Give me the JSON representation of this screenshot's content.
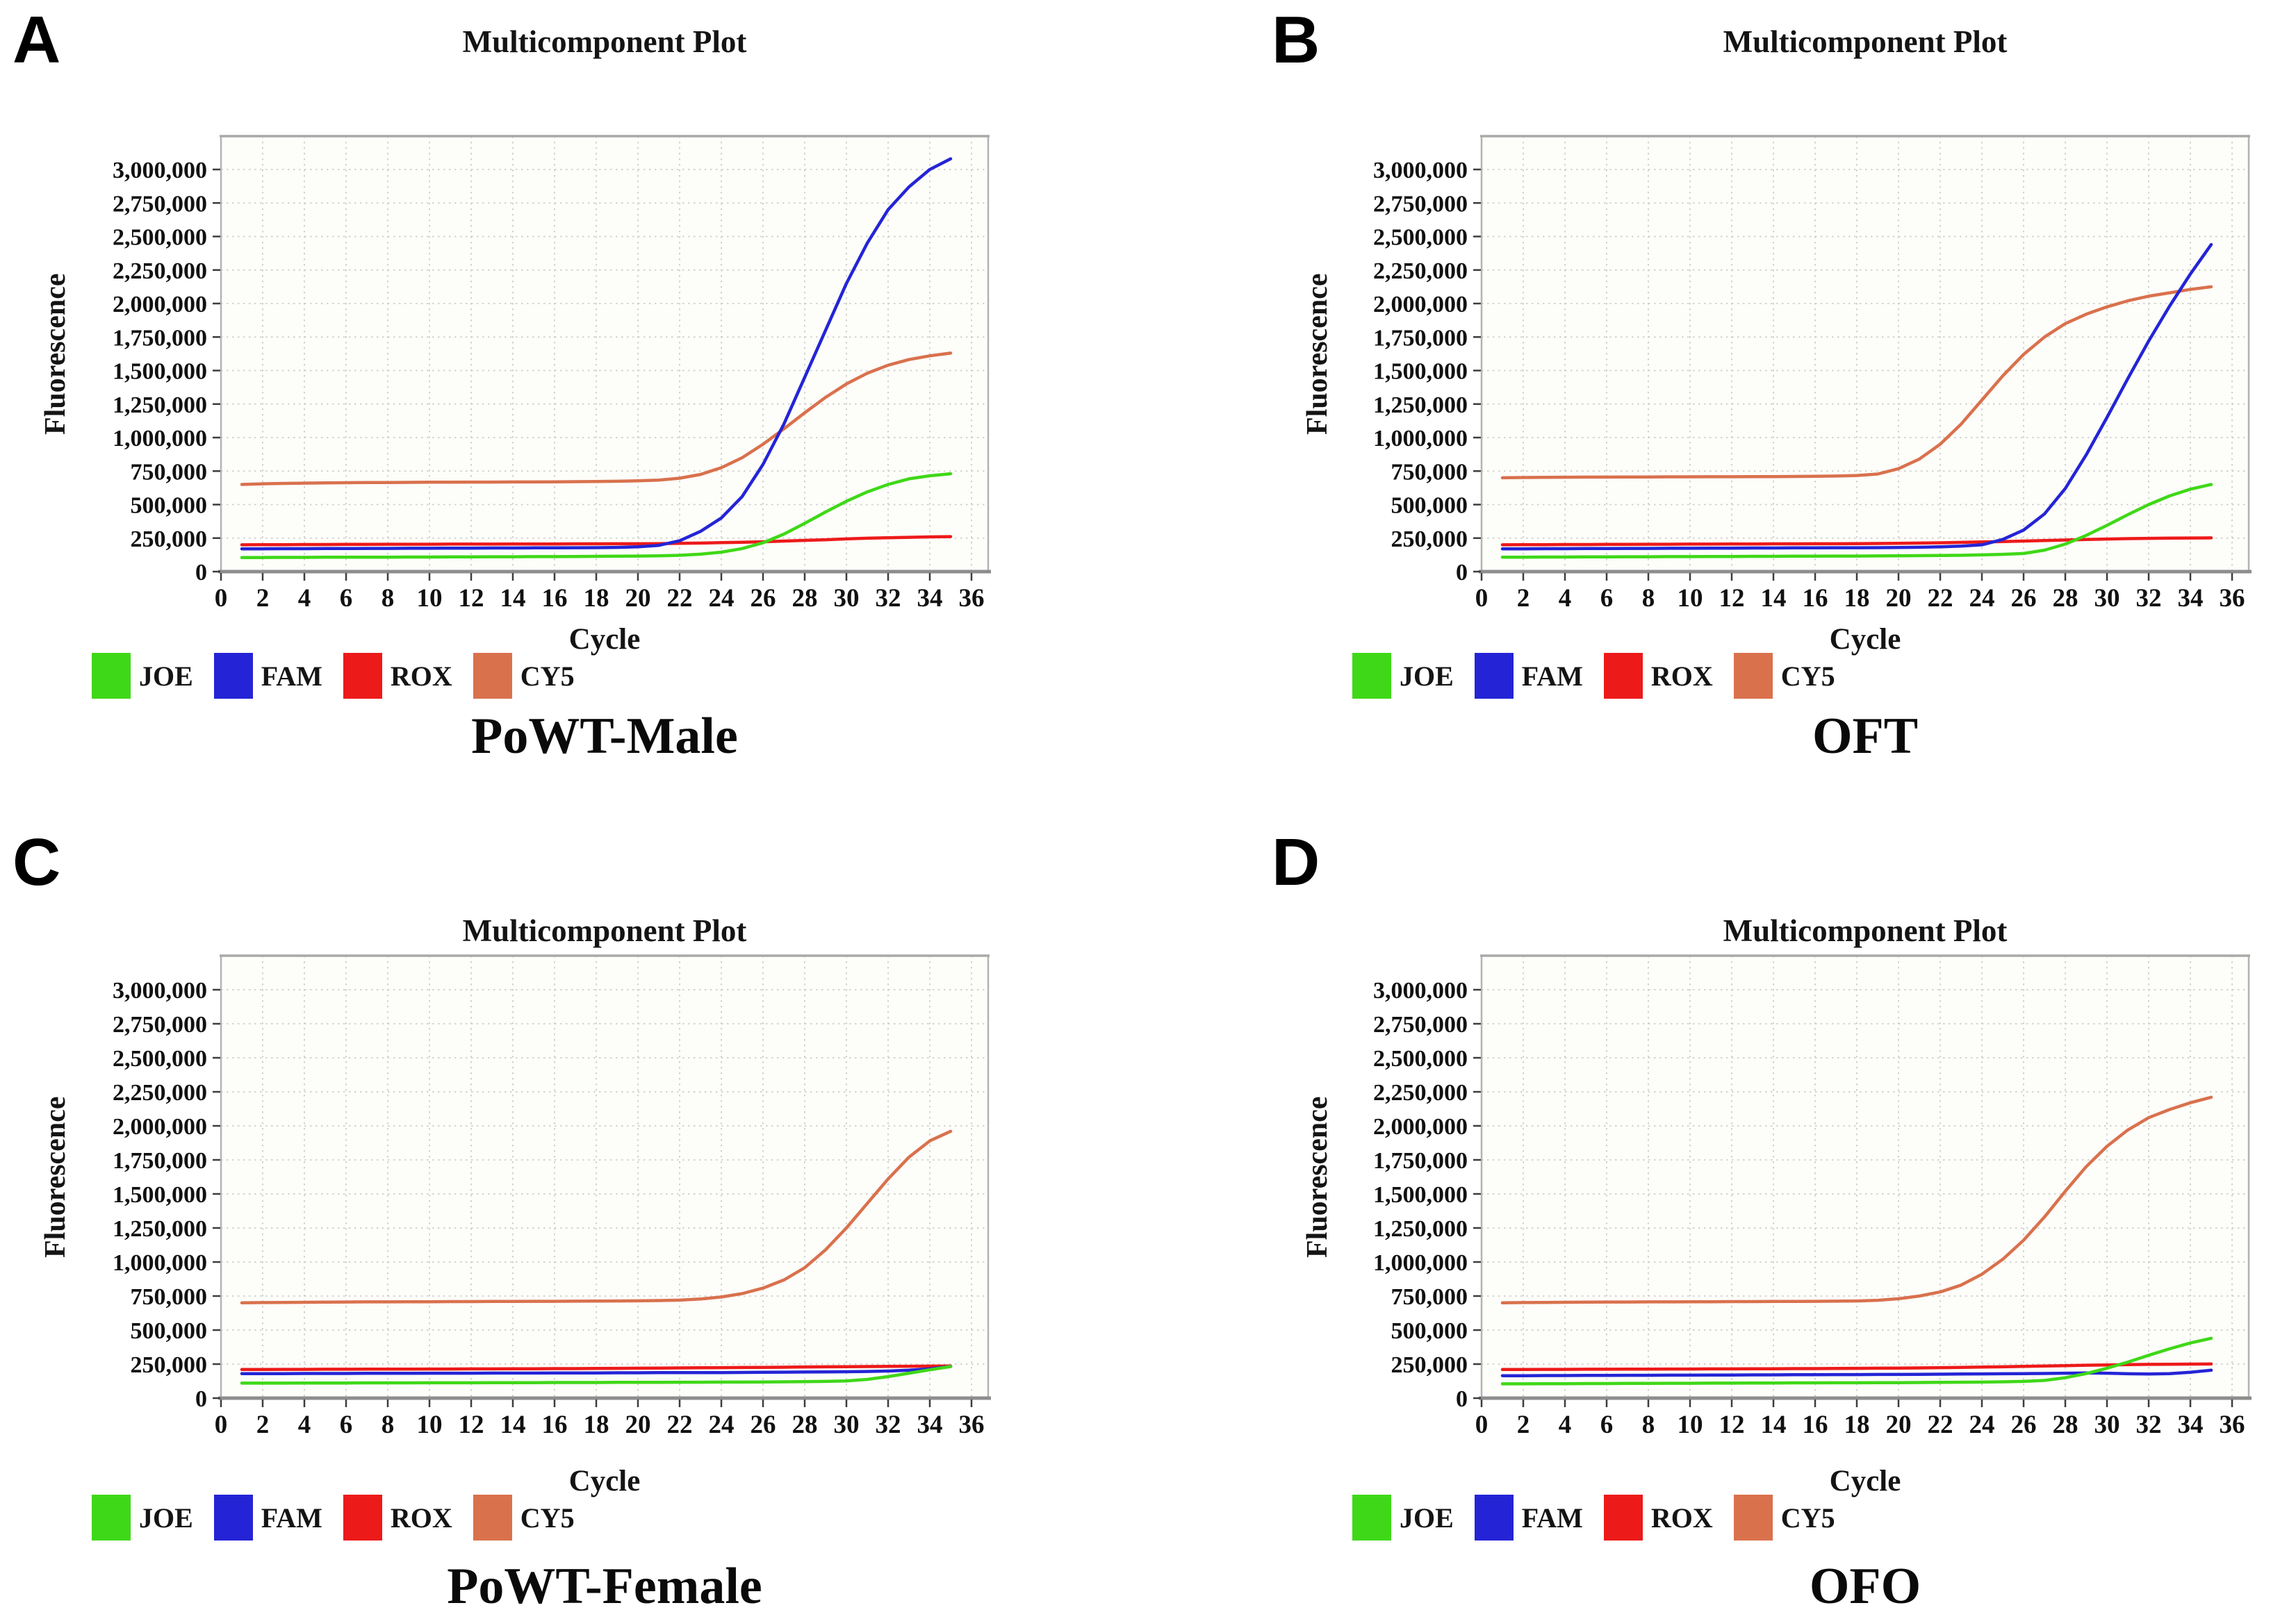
{
  "figure": {
    "background": "#ffffff",
    "grid_color": "#cdcdcd",
    "axis_border_color": "#b3b3b3",
    "axis_baseline_color": "#8d8d8d",
    "tick_color": "#3d3d3d"
  },
  "axes": {
    "title": "Multicomponent Plot",
    "xlabel": "Cycle",
    "ylabel": "Fluorescence",
    "xticks": [
      0,
      2,
      4,
      6,
      8,
      10,
      12,
      14,
      16,
      18,
      20,
      22,
      24,
      26,
      28,
      30,
      32,
      34,
      36
    ],
    "ytick_values": [
      0,
      250000,
      500000,
      750000,
      1000000,
      1250000,
      1500000,
      1750000,
      2000000,
      2250000,
      2500000,
      2750000,
      3000000
    ],
    "ytick_labels": [
      "0",
      "250,000",
      "500,000",
      "750,000",
      "1,000,000",
      "1,250,000",
      "1,500,000",
      "1,750,000",
      "2,000,000",
      "2,250,000",
      "2,500,000",
      "2,750,000",
      "3,000,000"
    ],
    "xlim": [
      0,
      36.8
    ],
    "ylim": [
      0,
      3250000
    ],
    "grid": true,
    "cycles": [
      1,
      2,
      3,
      4,
      5,
      6,
      7,
      8,
      9,
      10,
      11,
      12,
      13,
      14,
      15,
      16,
      17,
      18,
      19,
      20,
      21,
      22,
      23,
      24,
      25,
      26,
      27,
      28,
      29,
      30,
      31,
      32,
      33,
      34,
      35
    ]
  },
  "chart_data": [
    {
      "panel": "A",
      "label": "PoWT-Male",
      "type": "line",
      "title": "Multicomponent Plot",
      "xlabel": "Cycle",
      "ylabel": "Fluorescence",
      "legend_position": "bottom-left",
      "series": [
        {
          "name": "JOE",
          "color": "#3fd818",
          "values": [
            105000,
            105000,
            106000,
            106000,
            107000,
            107000,
            108000,
            108000,
            109000,
            109000,
            110000,
            110000,
            111000,
            111000,
            112000,
            112000,
            113000,
            114000,
            115000,
            116000,
            118000,
            122000,
            130000,
            145000,
            172000,
            215000,
            280000,
            360000,
            445000,
            525000,
            595000,
            650000,
            692000,
            715000,
            730000
          ]
        },
        {
          "name": "FAM",
          "color": "#2424d6",
          "values": [
            170000,
            170000,
            171000,
            171000,
            172000,
            172000,
            173000,
            173000,
            174000,
            174000,
            175000,
            175000,
            176000,
            176000,
            177000,
            177000,
            178000,
            179000,
            181000,
            185000,
            196000,
            230000,
            300000,
            400000,
            560000,
            800000,
            1100000,
            1450000,
            1800000,
            2150000,
            2450000,
            2700000,
            2870000,
            3000000,
            3080000
          ]
        },
        {
          "name": "ROX",
          "color": "#ed1a1a",
          "values": [
            200000,
            201000,
            201000,
            202000,
            202000,
            203000,
            203000,
            204000,
            204000,
            204000,
            205000,
            205000,
            205000,
            206000,
            206000,
            206000,
            207000,
            207000,
            208000,
            208000,
            209000,
            211000,
            213000,
            216000,
            219000,
            223000,
            228000,
            233000,
            238000,
            244000,
            249000,
            253000,
            256000,
            259000,
            261000
          ]
        },
        {
          "name": "CY5",
          "color": "#d9714d",
          "values": [
            650000,
            655000,
            658000,
            660000,
            662000,
            663000,
            664000,
            665000,
            666000,
            667000,
            667000,
            668000,
            668000,
            669000,
            669000,
            670000,
            671000,
            672000,
            674000,
            677000,
            683000,
            697000,
            725000,
            775000,
            850000,
            950000,
            1065000,
            1185000,
            1300000,
            1400000,
            1480000,
            1540000,
            1582000,
            1610000,
            1630000
          ]
        }
      ]
    },
    {
      "panel": "B",
      "label": "OFT",
      "type": "line",
      "title": "Multicomponent Plot",
      "xlabel": "Cycle",
      "ylabel": "Fluorescence",
      "legend_position": "bottom-left",
      "series": [
        {
          "name": "JOE",
          "color": "#3fd818",
          "values": [
            108000,
            108000,
            109000,
            109000,
            110000,
            110000,
            111000,
            111000,
            112000,
            112000,
            113000,
            113000,
            114000,
            114000,
            115000,
            115000,
            116000,
            116000,
            117000,
            118000,
            119000,
            120000,
            122000,
            125000,
            129000,
            135000,
            160000,
            205000,
            270000,
            345000,
            425000,
            500000,
            565000,
            615000,
            650000
          ]
        },
        {
          "name": "FAM",
          "color": "#2424d6",
          "values": [
            170000,
            170000,
            171000,
            171000,
            172000,
            172000,
            173000,
            173000,
            174000,
            174000,
            175000,
            175000,
            176000,
            176000,
            177000,
            177000,
            178000,
            178000,
            179000,
            180000,
            182000,
            185000,
            190000,
            200000,
            240000,
            310000,
            430000,
            620000,
            870000,
            1150000,
            1440000,
            1720000,
            1980000,
            2220000,
            2440000
          ]
        },
        {
          "name": "ROX",
          "color": "#ed1a1a",
          "values": [
            200000,
            201000,
            201000,
            202000,
            202000,
            203000,
            203000,
            204000,
            204000,
            205000,
            205000,
            206000,
            206000,
            207000,
            207000,
            208000,
            208000,
            209000,
            210000,
            211000,
            213000,
            215000,
            218000,
            221000,
            224000,
            228000,
            232000,
            236000,
            240000,
            243000,
            246000,
            248000,
            250000,
            251000,
            252000
          ]
        },
        {
          "name": "CY5",
          "color": "#d9714d",
          "values": [
            700000,
            702000,
            703000,
            704000,
            705000,
            705000,
            706000,
            706000,
            707000,
            707000,
            708000,
            708000,
            709000,
            709000,
            710000,
            711000,
            713000,
            717000,
            728000,
            768000,
            840000,
            950000,
            1100000,
            1280000,
            1460000,
            1620000,
            1750000,
            1850000,
            1920000,
            1975000,
            2020000,
            2055000,
            2080000,
            2105000,
            2125000
          ]
        }
      ]
    },
    {
      "panel": "C",
      "label": "PoWT-Female",
      "type": "line",
      "title": "Multicomponent Plot",
      "xlabel": "Cycle",
      "ylabel": "Fluorescence",
      "legend_position": "bottom-left",
      "series": [
        {
          "name": "JOE",
          "color": "#3fd818",
          "values": [
            110000,
            110000,
            110000,
            111000,
            111000,
            111000,
            112000,
            112000,
            112000,
            113000,
            113000,
            113000,
            114000,
            114000,
            114000,
            115000,
            115000,
            115000,
            116000,
            116000,
            116000,
            117000,
            117000,
            118000,
            118000,
            119000,
            120000,
            121000,
            123000,
            126000,
            138000,
            158000,
            183000,
            208000,
            232000
          ]
        },
        {
          "name": "FAM",
          "color": "#2424d6",
          "values": [
            180000,
            180000,
            180000,
            181000,
            181000,
            181000,
            182000,
            182000,
            182000,
            183000,
            183000,
            183000,
            184000,
            184000,
            184000,
            185000,
            185000,
            185000,
            186000,
            186000,
            187000,
            187000,
            188000,
            188000,
            189000,
            190000,
            191000,
            192000,
            193000,
            194000,
            196000,
            199000,
            205000,
            215000,
            232000
          ]
        },
        {
          "name": "ROX",
          "color": "#ed1a1a",
          "values": [
            210000,
            210000,
            211000,
            211000,
            212000,
            212000,
            213000,
            213000,
            213000,
            214000,
            214000,
            215000,
            215000,
            216000,
            216000,
            217000,
            217000,
            218000,
            219000,
            220000,
            221000,
            222000,
            223000,
            224000,
            225000,
            226000,
            227000,
            229000,
            230000,
            231000,
            232000,
            233000,
            234000,
            235000,
            236000
          ]
        },
        {
          "name": "CY5",
          "color": "#d9714d",
          "values": [
            700000,
            702000,
            703000,
            704000,
            705000,
            706000,
            707000,
            707000,
            708000,
            708000,
            709000,
            709000,
            710000,
            710000,
            711000,
            711000,
            712000,
            713000,
            714000,
            715000,
            717000,
            720000,
            728000,
            743000,
            768000,
            808000,
            868000,
            958000,
            1090000,
            1250000,
            1430000,
            1610000,
            1770000,
            1890000,
            1960000
          ]
        }
      ]
    },
    {
      "panel": "D",
      "label": "OFO",
      "type": "line",
      "title": "Multicomponent Plot",
      "xlabel": "Cycle",
      "ylabel": "Fluorescence",
      "legend_position": "bottom-left",
      "series": [
        {
          "name": "JOE",
          "color": "#3fd818",
          "values": [
            105000,
            105000,
            106000,
            106000,
            107000,
            107000,
            108000,
            108000,
            109000,
            109000,
            110000,
            110000,
            111000,
            111000,
            112000,
            112000,
            113000,
            113000,
            114000,
            114000,
            115000,
            116000,
            117000,
            118000,
            120000,
            123000,
            130000,
            150000,
            180000,
            220000,
            265000,
            315000,
            362000,
            405000,
            440000
          ]
        },
        {
          "name": "FAM",
          "color": "#2424d6",
          "values": [
            165000,
            165000,
            166000,
            166000,
            167000,
            167000,
            168000,
            168000,
            169000,
            169000,
            170000,
            170000,
            171000,
            171000,
            172000,
            172000,
            173000,
            173000,
            174000,
            174000,
            175000,
            176000,
            177000,
            178000,
            179000,
            180000,
            181000,
            183000,
            185000,
            183000,
            179000,
            177000,
            180000,
            190000,
            205000
          ]
        },
        {
          "name": "ROX",
          "color": "#ed1a1a",
          "values": [
            210000,
            210000,
            211000,
            211000,
            212000,
            212000,
            213000,
            213000,
            214000,
            214000,
            215000,
            215000,
            216000,
            216000,
            217000,
            217000,
            218000,
            219000,
            220000,
            221000,
            222000,
            224000,
            226000,
            228000,
            230000,
            233000,
            236000,
            239000,
            242000,
            244000,
            246000,
            248000,
            249000,
            250000,
            251000
          ]
        },
        {
          "name": "CY5",
          "color": "#d9714d",
          "values": [
            700000,
            702000,
            703000,
            704000,
            705000,
            706000,
            706000,
            707000,
            707000,
            708000,
            708000,
            709000,
            709000,
            710000,
            710000,
            711000,
            712000,
            714000,
            719000,
            730000,
            750000,
            780000,
            830000,
            910000,
            1020000,
            1160000,
            1330000,
            1520000,
            1700000,
            1850000,
            1970000,
            2060000,
            2120000,
            2170000,
            2210000
          ]
        }
      ]
    }
  ]
}
